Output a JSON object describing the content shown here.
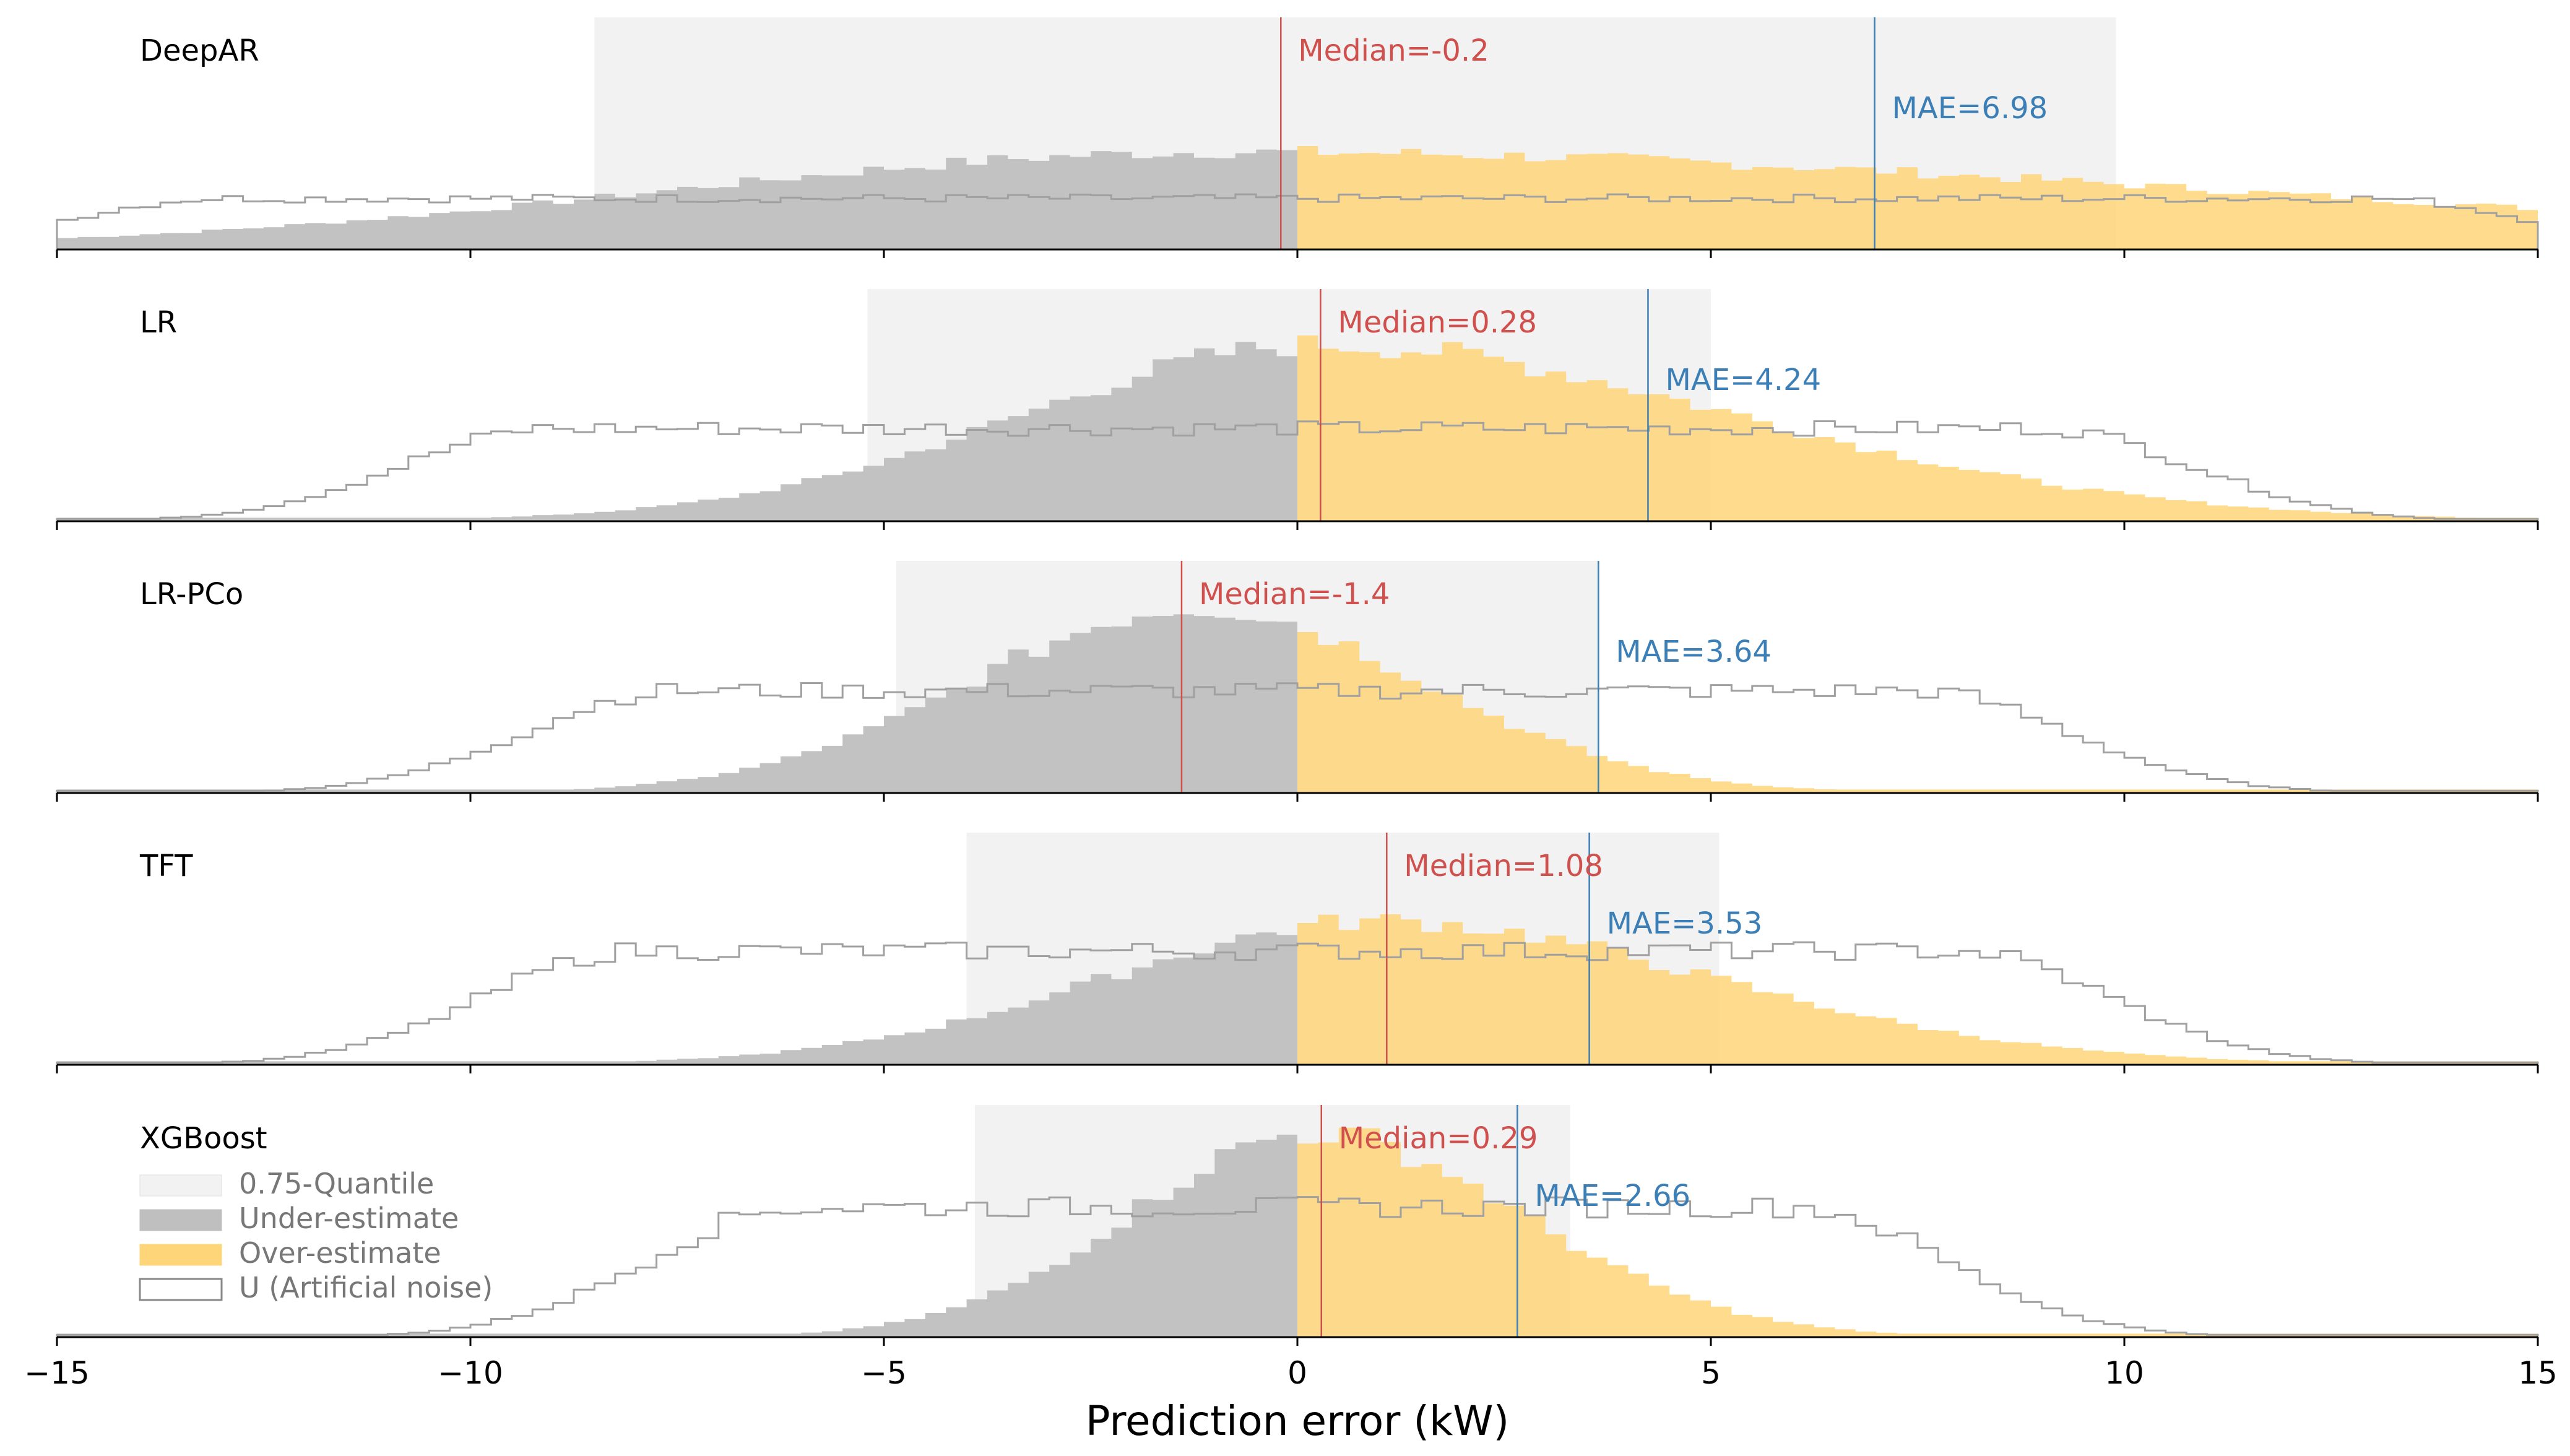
{
  "chart_data": {
    "type": "histogram",
    "xlabel": "Prediction error (kW)",
    "xlim": [
      -15,
      15
    ],
    "x_ticks": [
      -15,
      -10,
      -5,
      0,
      5,
      10,
      15
    ],
    "x_tick_labels": [
      "−15",
      "−10",
      "−5",
      "0",
      "5",
      "10",
      "15"
    ],
    "grid": false,
    "legend_location": "bottom-left of last panel",
    "colors": {
      "quantile": "#f2f2f2",
      "under": "#bfbfbf",
      "over": "#ffd57a",
      "noise_outline": "#a0a0a0",
      "median": "#d0504e",
      "mae": "#3c7fb6"
    },
    "legend": {
      "quantile": "0.75-Quantile",
      "under": "Under-estimate",
      "over": "Over-estimate",
      "noise": "U (Artificial noise)"
    },
    "panels": [
      {
        "model": "DeepAR",
        "median": -0.2,
        "mae": 6.98,
        "median_label": "Median=-0.2",
        "mae_label": "MAE=6.98",
        "quantile_range": [
          -8.5,
          9.9
        ],
        "err_mode": -0.8,
        "err_left_sd": 6.8,
        "err_right_sd": 12.0,
        "err_peak": 0.42,
        "noise_level": 0.22,
        "noise_half_width": 13
      },
      {
        "model": "LR",
        "median": 0.28,
        "mae": 4.24,
        "median_label": "Median=0.28",
        "mae_label": "MAE=4.24",
        "quantile_range": [
          -5.2,
          5.0
        ],
        "err_mode": 0.3,
        "err_left_sd": 3.6,
        "err_right_sd": 5.0,
        "err_peak": 0.76,
        "noise_level": 0.4,
        "noise_half_width": 9
      },
      {
        "model": "LR-PCo",
        "median": -1.4,
        "mae": 3.64,
        "median_label": "Median=-1.4",
        "mae_label": "MAE=3.64",
        "quantile_range": [
          -4.85,
          3.65
        ],
        "err_mode": -1.2,
        "err_left_sd": 2.7,
        "err_right_sd": 2.7,
        "err_peak": 0.8,
        "noise_level": 0.44,
        "noise_half_width": 7.5
      },
      {
        "model": "TFT",
        "median": 1.08,
        "mae": 3.53,
        "median_label": "Median=1.08",
        "mae_label": "MAE=3.53",
        "quantile_range": [
          -4.0,
          5.1
        ],
        "err_mode": 1.0,
        "err_left_sd": 3.3,
        "err_right_sd": 4.0,
        "err_peak": 0.62,
        "noise_level": 0.49,
        "noise_half_width": 8
      },
      {
        "model": "XGBoost",
        "median": 0.29,
        "mae": 2.66,
        "median_label": "Median=0.29",
        "mae_label": "MAE=2.66",
        "quantile_range": [
          -3.9,
          3.3
        ],
        "err_mode": 0.2,
        "err_left_sd": 2.2,
        "err_right_sd": 2.5,
        "err_peak": 0.88,
        "noise_level": 0.56,
        "noise_half_width": 6
      }
    ]
  }
}
